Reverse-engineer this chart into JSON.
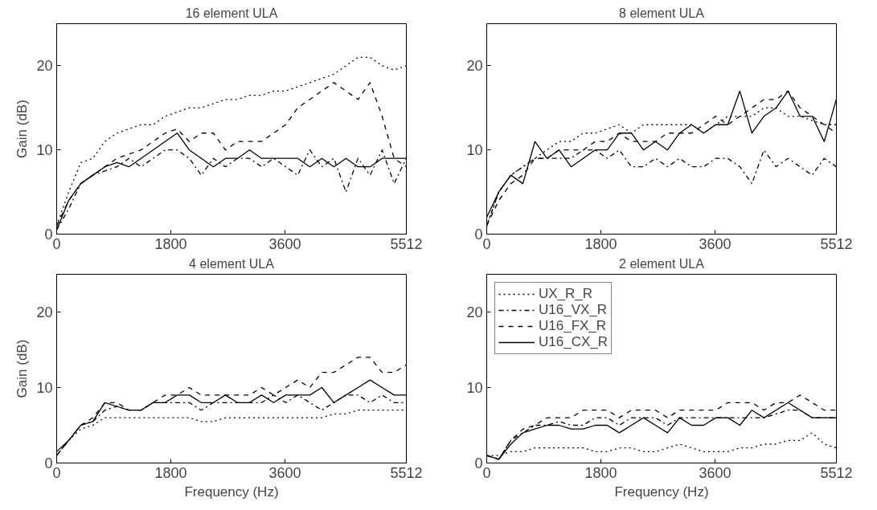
{
  "chart_data": [
    {
      "type": "line",
      "title": "16 element ULA",
      "ylabel": "Gain (dB)",
      "x": [
        0,
        190,
        380,
        570,
        760,
        950,
        1140,
        1330,
        1520,
        1710,
        1900,
        2090,
        2280,
        2470,
        2660,
        2850,
        3040,
        3230,
        3420,
        3610,
        3800,
        3990,
        4180,
        4370,
        4560,
        4750,
        4940,
        5130,
        5320,
        5510
      ],
      "xlim": [
        0,
        5512
      ],
      "xticks": [
        0,
        1800,
        3600,
        5512
      ],
      "ylim": [
        0,
        25
      ],
      "yticks": [
        0,
        10,
        20
      ],
      "series": [
        {
          "color": "#000000",
          "line_style": "dotted",
          "values": [
            1,
            5,
            8.5,
            9,
            11,
            12,
            12.5,
            13,
            13,
            14,
            14.5,
            15,
            15,
            15.5,
            16,
            16,
            16.5,
            16.5,
            17,
            17,
            17.5,
            18,
            18.5,
            19,
            20,
            21,
            21,
            20,
            19.5,
            20
          ]
        },
        {
          "color": "#000000",
          "line_style": "dashdot",
          "values": [
            0.5,
            3,
            6,
            7,
            7.5,
            8,
            9,
            8,
            9,
            10,
            10,
            9,
            7,
            9,
            8,
            9,
            9,
            8,
            9,
            8,
            7,
            10,
            8,
            9,
            5,
            9,
            7,
            10,
            6,
            9
          ]
        },
        {
          "color": "#000000",
          "line_style": "dashed",
          "values": [
            1,
            4,
            6,
            7,
            8,
            9,
            9.5,
            10,
            11,
            12,
            12.5,
            11,
            12,
            12,
            10,
            11,
            11,
            11,
            12,
            13,
            15,
            16,
            17,
            18,
            17,
            16,
            18,
            14,
            9,
            8
          ]
        },
        {
          "color": "#000000",
          "line_style": "solid",
          "values": [
            0.5,
            4,
            6,
            7,
            8,
            8.5,
            8,
            9,
            10,
            11,
            12,
            10,
            9,
            8,
            9,
            9,
            10,
            9,
            9,
            9,
            9,
            8,
            9,
            8,
            9,
            8,
            8,
            9,
            9,
            9
          ]
        }
      ]
    },
    {
      "type": "line",
      "title": "8 element ULA",
      "x": [
        0,
        190,
        380,
        570,
        760,
        950,
        1140,
        1330,
        1520,
        1710,
        1900,
        2090,
        2280,
        2470,
        2660,
        2850,
        3040,
        3230,
        3420,
        3610,
        3800,
        3990,
        4180,
        4370,
        4560,
        4750,
        4940,
        5130,
        5320,
        5510
      ],
      "xlim": [
        0,
        5512
      ],
      "xticks": [
        0,
        1800,
        3600,
        5512
      ],
      "ylim": [
        0,
        25
      ],
      "yticks": [
        0,
        10,
        20
      ],
      "series": [
        {
          "color": "#000000",
          "line_style": "dotted",
          "values": [
            1,
            5,
            7,
            8,
            9,
            10,
            11,
            11,
            12,
            12,
            12.5,
            13,
            12,
            13,
            13,
            13,
            13,
            13,
            12,
            13,
            14,
            14,
            14,
            15,
            15,
            14,
            14,
            13.5,
            13,
            13
          ]
        },
        {
          "color": "#000000",
          "line_style": "dashdot",
          "values": [
            1,
            5,
            7,
            8,
            9,
            9,
            9,
            9,
            10,
            10,
            9,
            10,
            8,
            8,
            9,
            8,
            9,
            8,
            8,
            9,
            9,
            8,
            6,
            10,
            8,
            9,
            8,
            7,
            9,
            8
          ]
        },
        {
          "color": "#000000",
          "line_style": "dashed",
          "values": [
            1,
            4,
            6,
            7,
            9,
            9,
            10,
            10,
            10,
            11,
            11,
            12,
            11,
            11,
            11,
            12,
            12,
            12,
            13,
            14,
            13,
            14,
            15,
            16,
            16,
            17,
            15,
            14,
            13,
            12
          ]
        },
        {
          "color": "#000000",
          "line_style": "solid",
          "values": [
            2,
            5,
            7,
            6,
            11,
            9,
            10,
            8,
            9,
            10,
            10,
            12,
            12,
            10,
            11,
            10,
            12,
            13,
            12,
            13,
            13,
            17,
            12,
            14,
            15,
            17,
            14,
            14,
            11,
            16
          ]
        }
      ]
    },
    {
      "type": "line",
      "title": "4 element ULA",
      "xlabel": "Frequency (Hz)",
      "ylabel": "Gain (dB)",
      "x": [
        0,
        190,
        380,
        570,
        760,
        950,
        1140,
        1330,
        1520,
        1710,
        1900,
        2090,
        2280,
        2470,
        2660,
        2850,
        3040,
        3230,
        3420,
        3610,
        3800,
        3990,
        4180,
        4370,
        4560,
        4750,
        4940,
        5130,
        5320,
        5510
      ],
      "xlim": [
        0,
        5512
      ],
      "xticks": [
        0,
        1800,
        3600,
        5512
      ],
      "ylim": [
        0,
        25
      ],
      "yticks": [
        0,
        10,
        20
      ],
      "series": [
        {
          "color": "#000000",
          "line_style": "dotted",
          "values": [
            1,
            3,
            4.5,
            5,
            6,
            6,
            6,
            6,
            6,
            6,
            6,
            6,
            5.5,
            5.5,
            6,
            6,
            6,
            6,
            6,
            6,
            6,
            6,
            6,
            6.5,
            6.5,
            7,
            7,
            7,
            7,
            7
          ]
        },
        {
          "color": "#000000",
          "line_style": "dashdot",
          "values": [
            1,
            3,
            5,
            5.5,
            7,
            7.5,
            7,
            7,
            8,
            8,
            8,
            8,
            7,
            8,
            8,
            8,
            8,
            8,
            9,
            8,
            9,
            8,
            7,
            8,
            9,
            9,
            8,
            9,
            8,
            8
          ]
        },
        {
          "color": "#000000",
          "line_style": "dashed",
          "values": [
            1,
            3,
            5,
            6,
            8,
            8,
            7,
            7,
            8,
            9,
            9,
            10,
            9,
            9,
            9,
            9,
            9,
            10,
            9,
            10,
            11,
            10,
            12,
            12,
            13,
            14,
            14,
            12,
            12,
            13
          ]
        },
        {
          "color": "#000000",
          "line_style": "solid",
          "values": [
            1.5,
            3,
            5,
            5.5,
            8,
            7.5,
            7,
            7,
            8,
            8,
            9,
            9,
            8,
            8,
            9,
            8,
            8,
            9,
            8,
            9,
            9,
            9,
            10,
            8,
            9,
            10,
            11,
            10,
            9,
            9
          ]
        }
      ]
    },
    {
      "type": "line",
      "title": "2 element ULA",
      "xlabel": "Frequency (Hz)",
      "x": [
        0,
        190,
        380,
        570,
        760,
        950,
        1140,
        1330,
        1520,
        1710,
        1900,
        2090,
        2280,
        2470,
        2660,
        2850,
        3040,
        3230,
        3420,
        3610,
        3800,
        3990,
        4180,
        4370,
        4560,
        4750,
        4940,
        5130,
        5320,
        5510
      ],
      "xlim": [
        0,
        5512
      ],
      "xticks": [
        0,
        1800,
        3600,
        5512
      ],
      "ylim": [
        0,
        25
      ],
      "yticks": [
        0,
        10,
        20
      ],
      "legend": "top left",
      "series": [
        {
          "name": "UX_R_R",
          "color": "#000000",
          "line_style": "dotted",
          "values": [
            1,
            1,
            1.5,
            1.5,
            2,
            2,
            2,
            2,
            2,
            1.5,
            1.5,
            2,
            2,
            1.5,
            1.5,
            2,
            2.5,
            2,
            1.5,
            1.5,
            1.5,
            2,
            2,
            2.5,
            2.5,
            3,
            3,
            4,
            2.5,
            2
          ]
        },
        {
          "name": "U16_VX_R",
          "color": "#000000",
          "line_style": "dashdot",
          "values": [
            1,
            0.5,
            3,
            4,
            5,
            5,
            5.5,
            5,
            5,
            6,
            6,
            5,
            6,
            6,
            6,
            5,
            6,
            6,
            6,
            6,
            6,
            6,
            6,
            6,
            6.5,
            7,
            7,
            6,
            6,
            6
          ]
        },
        {
          "name": "U16_FX_R",
          "color": "#000000",
          "line_style": "dashed",
          "values": [
            1,
            0.5,
            3,
            4.5,
            5,
            6,
            6,
            6,
            7,
            7,
            7,
            6,
            7,
            7,
            7,
            6,
            7,
            7,
            7,
            7,
            8,
            8,
            8,
            7,
            8,
            8,
            9,
            8,
            7,
            7
          ]
        },
        {
          "name": "U16_CX_R",
          "color": "#000000",
          "line_style": "solid",
          "values": [
            1,
            0.5,
            2.5,
            4,
            4.5,
            5,
            5,
            4.5,
            4.5,
            5,
            5,
            4,
            5,
            6,
            5,
            4,
            6,
            5,
            5,
            6,
            6,
            5,
            7,
            6,
            7,
            8,
            7,
            6,
            6,
            6
          ]
        }
      ]
    }
  ]
}
